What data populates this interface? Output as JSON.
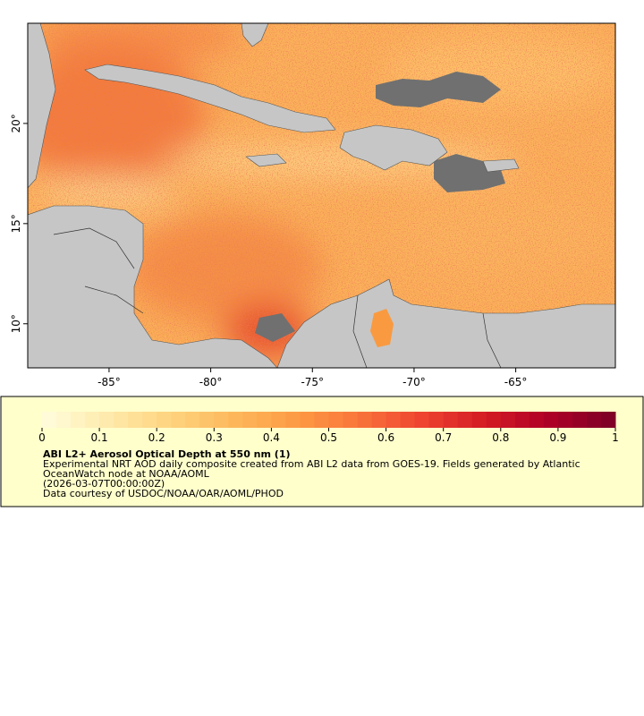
{
  "map": {
    "xlim": [
      -89.0,
      -60.1
    ],
    "ylim": [
      7.8,
      25.0
    ],
    "xticks": [
      {
        "value": -85,
        "label": "-85°"
      },
      {
        "value": -80,
        "label": "-80°"
      },
      {
        "value": -75,
        "label": "-75°"
      },
      {
        "value": -70,
        "label": "-70°"
      },
      {
        "value": -65,
        "label": "-65°"
      }
    ],
    "yticks": [
      {
        "value": 10,
        "label": "10°"
      },
      {
        "value": 15,
        "label": "15°"
      },
      {
        "value": 20,
        "label": "20°"
      }
    ]
  },
  "colorbar": {
    "range": [
      0,
      1
    ],
    "ticks": [
      0,
      0.1,
      0.2,
      0.3,
      0.4,
      0.5,
      0.6,
      0.7,
      0.8,
      0.9,
      1
    ],
    "colors": [
      "#fffbd8",
      "#fee9a8",
      "#fed27c",
      "#fdb75a",
      "#fd9a44",
      "#f9743a",
      "#ee4430",
      "#d41b24",
      "#b10026",
      "#800026"
    ]
  },
  "legend": {
    "title": "ABI L2+ Aerosol Optical Depth at 550 nm (1)",
    "lines": [
      "Experimental NRT AOD daily composite created from ABI L2 data from GOES-19. Fields generated by Atlantic",
      "OceanWatch node at NOAA/AOML",
      "(2026-03-07T00:00:00Z)",
      "Data courtesy of USDOC/NOAA/OAR/AOML/PHOD"
    ]
  }
}
